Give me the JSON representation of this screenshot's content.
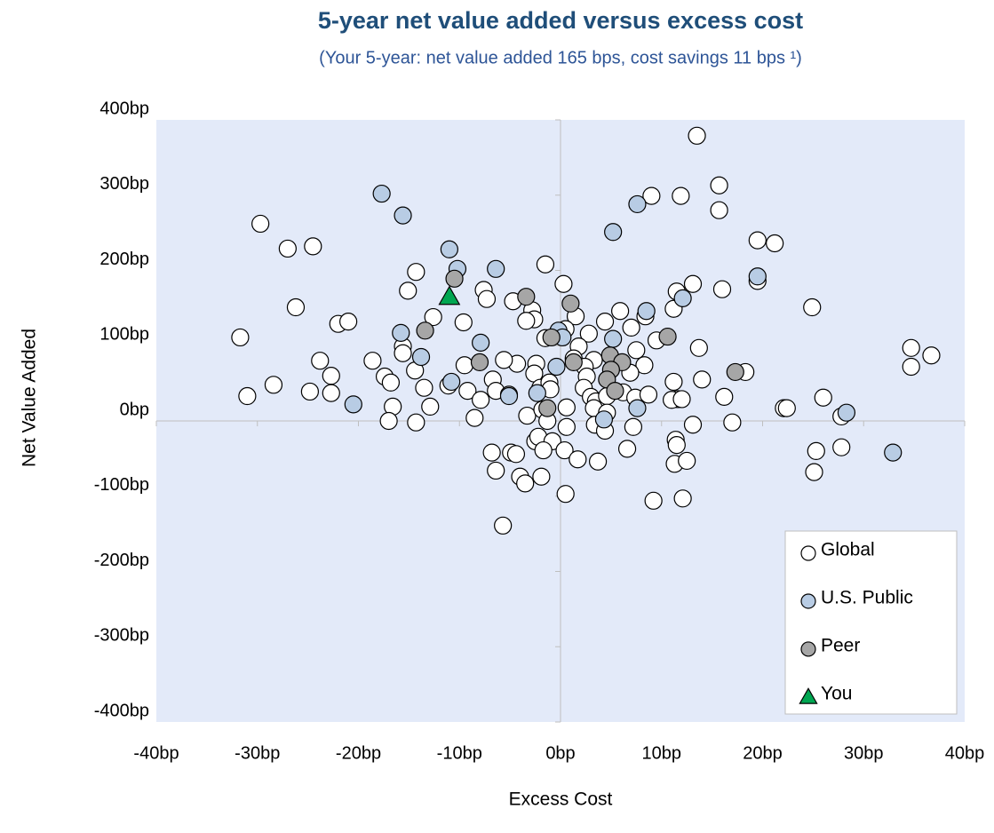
{
  "chart_data": {
    "type": "scatter",
    "title": "5-year net value added versus excess cost",
    "subtitle": "(Your 5-year: net value added 165 bps, cost savings 11 bps ¹)",
    "xlabel": "Excess Cost",
    "ylabel": "Net Value Added",
    "xlim": [
      -40,
      40
    ],
    "ylim": [
      -400,
      400
    ],
    "xticks": [
      {
        "value": -40,
        "label": "-40bp"
      },
      {
        "value": -30,
        "label": "-30bp"
      },
      {
        "value": -20,
        "label": "-20bp"
      },
      {
        "value": -10,
        "label": "-10bp"
      },
      {
        "value": 0,
        "label": "0bp"
      },
      {
        "value": 10,
        "label": "10bp"
      },
      {
        "value": 20,
        "label": "20bp"
      },
      {
        "value": 30,
        "label": "30bp"
      },
      {
        "value": 40,
        "label": "40bp"
      }
    ],
    "yticks": [
      {
        "value": -400,
        "label": "-400bp"
      },
      {
        "value": -300,
        "label": "-300bp"
      },
      {
        "value": -200,
        "label": "-200bp"
      },
      {
        "value": -100,
        "label": "-100bp"
      },
      {
        "value": 0,
        "label": "0bp"
      },
      {
        "value": 100,
        "label": "100bp"
      },
      {
        "value": 200,
        "label": "200bp"
      },
      {
        "value": 300,
        "label": "300bp"
      },
      {
        "value": 400,
        "label": "400bp"
      }
    ],
    "legend": "lower right",
    "background": "#e3eaf9",
    "series": [
      {
        "name": "Global",
        "color": "#ffffff",
        "marker": "circle",
        "x": [
          13.5,
          15.7,
          15.7,
          9.0,
          11.9,
          -29.7,
          -27,
          -24.5,
          19.5,
          21.2,
          19.5,
          -1.5,
          -14.3,
          -15.1,
          0.3,
          16,
          13.1,
          11.5,
          -7.6,
          -7.3,
          -4.7,
          -26.2,
          -2.8,
          -2.6,
          -3.4,
          5.9,
          -12.6,
          -9.6,
          -22,
          -21,
          11.2,
          1.5,
          4.4,
          2.8,
          7,
          8.4,
          -31.7,
          -1.5,
          0.5,
          1.8,
          1.3,
          -15.6,
          -15.6,
          7.5,
          9.5,
          13.7,
          -23.8,
          -18.6,
          -2.4,
          -4.3,
          -5.6,
          -9.5,
          8.3,
          3.3,
          6.9,
          -14.4,
          -17.4,
          -16.8,
          -22.7,
          -28.4,
          -31,
          -24.8,
          -22.7,
          -13.5,
          -11.1,
          -9.2,
          -6.7,
          -6.4,
          -5.1,
          -7.9,
          -2.6,
          -2,
          -1.1,
          -1,
          2.4,
          2.6,
          2.3,
          3,
          3.5,
          4.6,
          6.2,
          7.4,
          8.7,
          11.2,
          11.6,
          11,
          12,
          14,
          16.2,
          18.3,
          -12.9,
          -16.6,
          -17,
          -14.3,
          -8.5,
          -3.3,
          -1.8,
          -1.3,
          0.6,
          0.6,
          3.3,
          3.4,
          4.6,
          4.4,
          7.2,
          13.1,
          17,
          22.1,
          22.4,
          26,
          27.8,
          34.7,
          34.7,
          36.7,
          24.9,
          25.3,
          25.1,
          27.8,
          -2.5,
          -2.2,
          -0.8,
          -1.7,
          -4.9,
          -4.4,
          -6.8,
          -6.4,
          -4,
          -3.5,
          -1.9,
          0.4,
          1.7,
          3.7,
          6.6,
          11.4,
          11.5,
          11.3,
          12.5,
          0.5,
          -5.7,
          9.2,
          12.1
        ],
        "y": [
          379,
          313,
          280,
          299,
          299,
          262,
          229,
          232,
          240,
          236,
          186,
          208,
          198,
          173,
          182,
          175,
          182,
          172,
          174,
          162,
          159,
          151,
          147,
          135,
          133,
          146,
          138,
          131,
          129,
          132,
          149,
          139,
          132,
          116,
          124,
          139,
          111,
          110,
          122,
          99,
          83,
          99,
          90,
          94,
          107,
          97,
          80,
          80,
          76,
          76,
          81,
          74,
          74,
          81,
          64,
          67,
          59,
          51,
          60,
          48,
          33,
          39,
          37,
          44,
          47,
          40,
          55,
          40,
          35,
          28,
          63,
          44,
          51,
          42,
          72,
          59,
          44,
          32,
          26,
          33,
          38,
          31,
          35,
          52,
          29,
          28,
          29,
          55,
          32,
          65,
          19,
          19,
          0,
          -2,
          4,
          7,
          15,
          0,
          18,
          -8,
          17,
          -5,
          11,
          -13,
          -8,
          -5,
          -2,
          17,
          17,
          31,
          6,
          97,
          72,
          87,
          151,
          -40,
          -68,
          -35,
          -27,
          -21,
          -27,
          -39,
          -42,
          -44,
          -42,
          -66,
          -74,
          -83,
          -74,
          -39,
          -51,
          -54,
          -37,
          -25,
          -32,
          -57,
          -53,
          -97,
          -139,
          -106,
          -103
        ]
      },
      {
        "name": "U.S. Public",
        "color": "#b8cce4",
        "marker": "circle",
        "x": [
          -17.7,
          -15.6,
          7.6,
          5.2,
          -11,
          -10.2,
          -6.4,
          19.5,
          12.1,
          8.5,
          -15.8,
          -7.9,
          -0.2,
          0.2,
          5.2,
          -13.8,
          -0.4,
          -10.8,
          -5.1,
          -2.3,
          7.6,
          4.3,
          -20.5,
          28.3,
          32.9
        ],
        "y": [
          302,
          273,
          288,
          251,
          228,
          202,
          202,
          192,
          163,
          146,
          117,
          104,
          120,
          111,
          109,
          85,
          72,
          52,
          33,
          37,
          17,
          2,
          22,
          11,
          -42
        ]
      },
      {
        "name": "Peer",
        "color": "#a6a6a6",
        "marker": "circle",
        "x": [
          -10.5,
          -3.4,
          1,
          -13.4,
          -0.9,
          10.6,
          1.3,
          -8,
          4.9,
          6.1,
          5,
          4.6,
          5.4,
          17.3,
          -1.3
        ],
        "y": [
          189,
          165,
          156,
          120,
          111,
          112,
          78,
          78,
          87,
          78,
          68,
          55,
          40,
          65,
          17
        ]
      },
      {
        "name": "You",
        "color": "#00a651",
        "marker": "triangle",
        "x": [
          -11
        ],
        "y": [
          165
        ]
      }
    ]
  }
}
